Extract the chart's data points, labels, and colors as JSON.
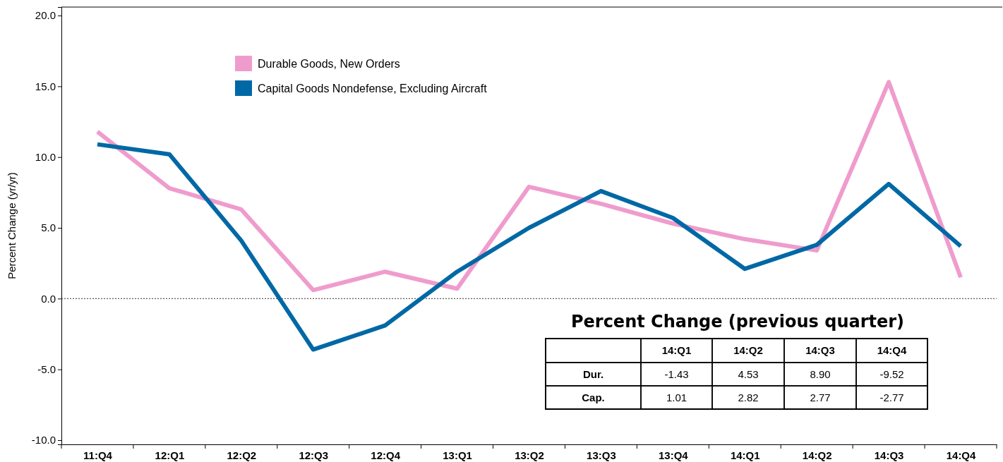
{
  "chart_data": {
    "type": "line",
    "ylabel": "Percent Change (yr/yr)",
    "categories": [
      "11:Q4",
      "12:Q1",
      "12:Q2",
      "12:Q3",
      "12:Q4",
      "13:Q1",
      "13:Q2",
      "13:Q3",
      "13:Q4",
      "14:Q1",
      "14:Q2",
      "14:Q3",
      "14:Q4"
    ],
    "series": [
      {
        "name": "Durable Goods, New Orders",
        "color": "#ef9ccd",
        "values": [
          11.8,
          7.8,
          6.3,
          0.6,
          1.9,
          0.7,
          7.9,
          6.7,
          5.3,
          4.2,
          3.4,
          15.3,
          1.5
        ]
      },
      {
        "name": "Capital Goods Nondefense, Excluding Aircraft",
        "color": "#0068a5",
        "values": [
          10.9,
          10.2,
          4.1,
          -3.6,
          -1.9,
          1.9,
          5.0,
          7.6,
          5.7,
          2.1,
          3.8,
          8.1,
          3.7
        ]
      }
    ],
    "ylim": [
      -10.3,
      20.6
    ],
    "yticks": [
      {
        "value": -10,
        "label": "-10.0"
      },
      {
        "value": -5,
        "label": "-5.0"
      },
      {
        "value": 0,
        "label": "0.0"
      },
      {
        "value": 5,
        "label": "5.0"
      },
      {
        "value": 10,
        "label": "10.0"
      },
      {
        "value": 15,
        "label": "15.0"
      },
      {
        "value": 20,
        "label": "20.0"
      }
    ],
    "ref_lines": [
      {
        "axis": "y",
        "value": 0,
        "color": "#333333",
        "line_style": "dotted"
      }
    ],
    "legend": "top left",
    "grid": false,
    "line_style": "solid",
    "marker": "none",
    "annotations": [
      "Percent Change (previous quarter)",
      "14:Q1",
      "14:Q2",
      "14:Q3",
      "14:Q4",
      "Dur.",
      "-1.43",
      "4.53",
      "8.90",
      "-9.52",
      "Cap.",
      "1.01",
      "2.82",
      "2.77",
      "-2.77"
    ]
  }
}
